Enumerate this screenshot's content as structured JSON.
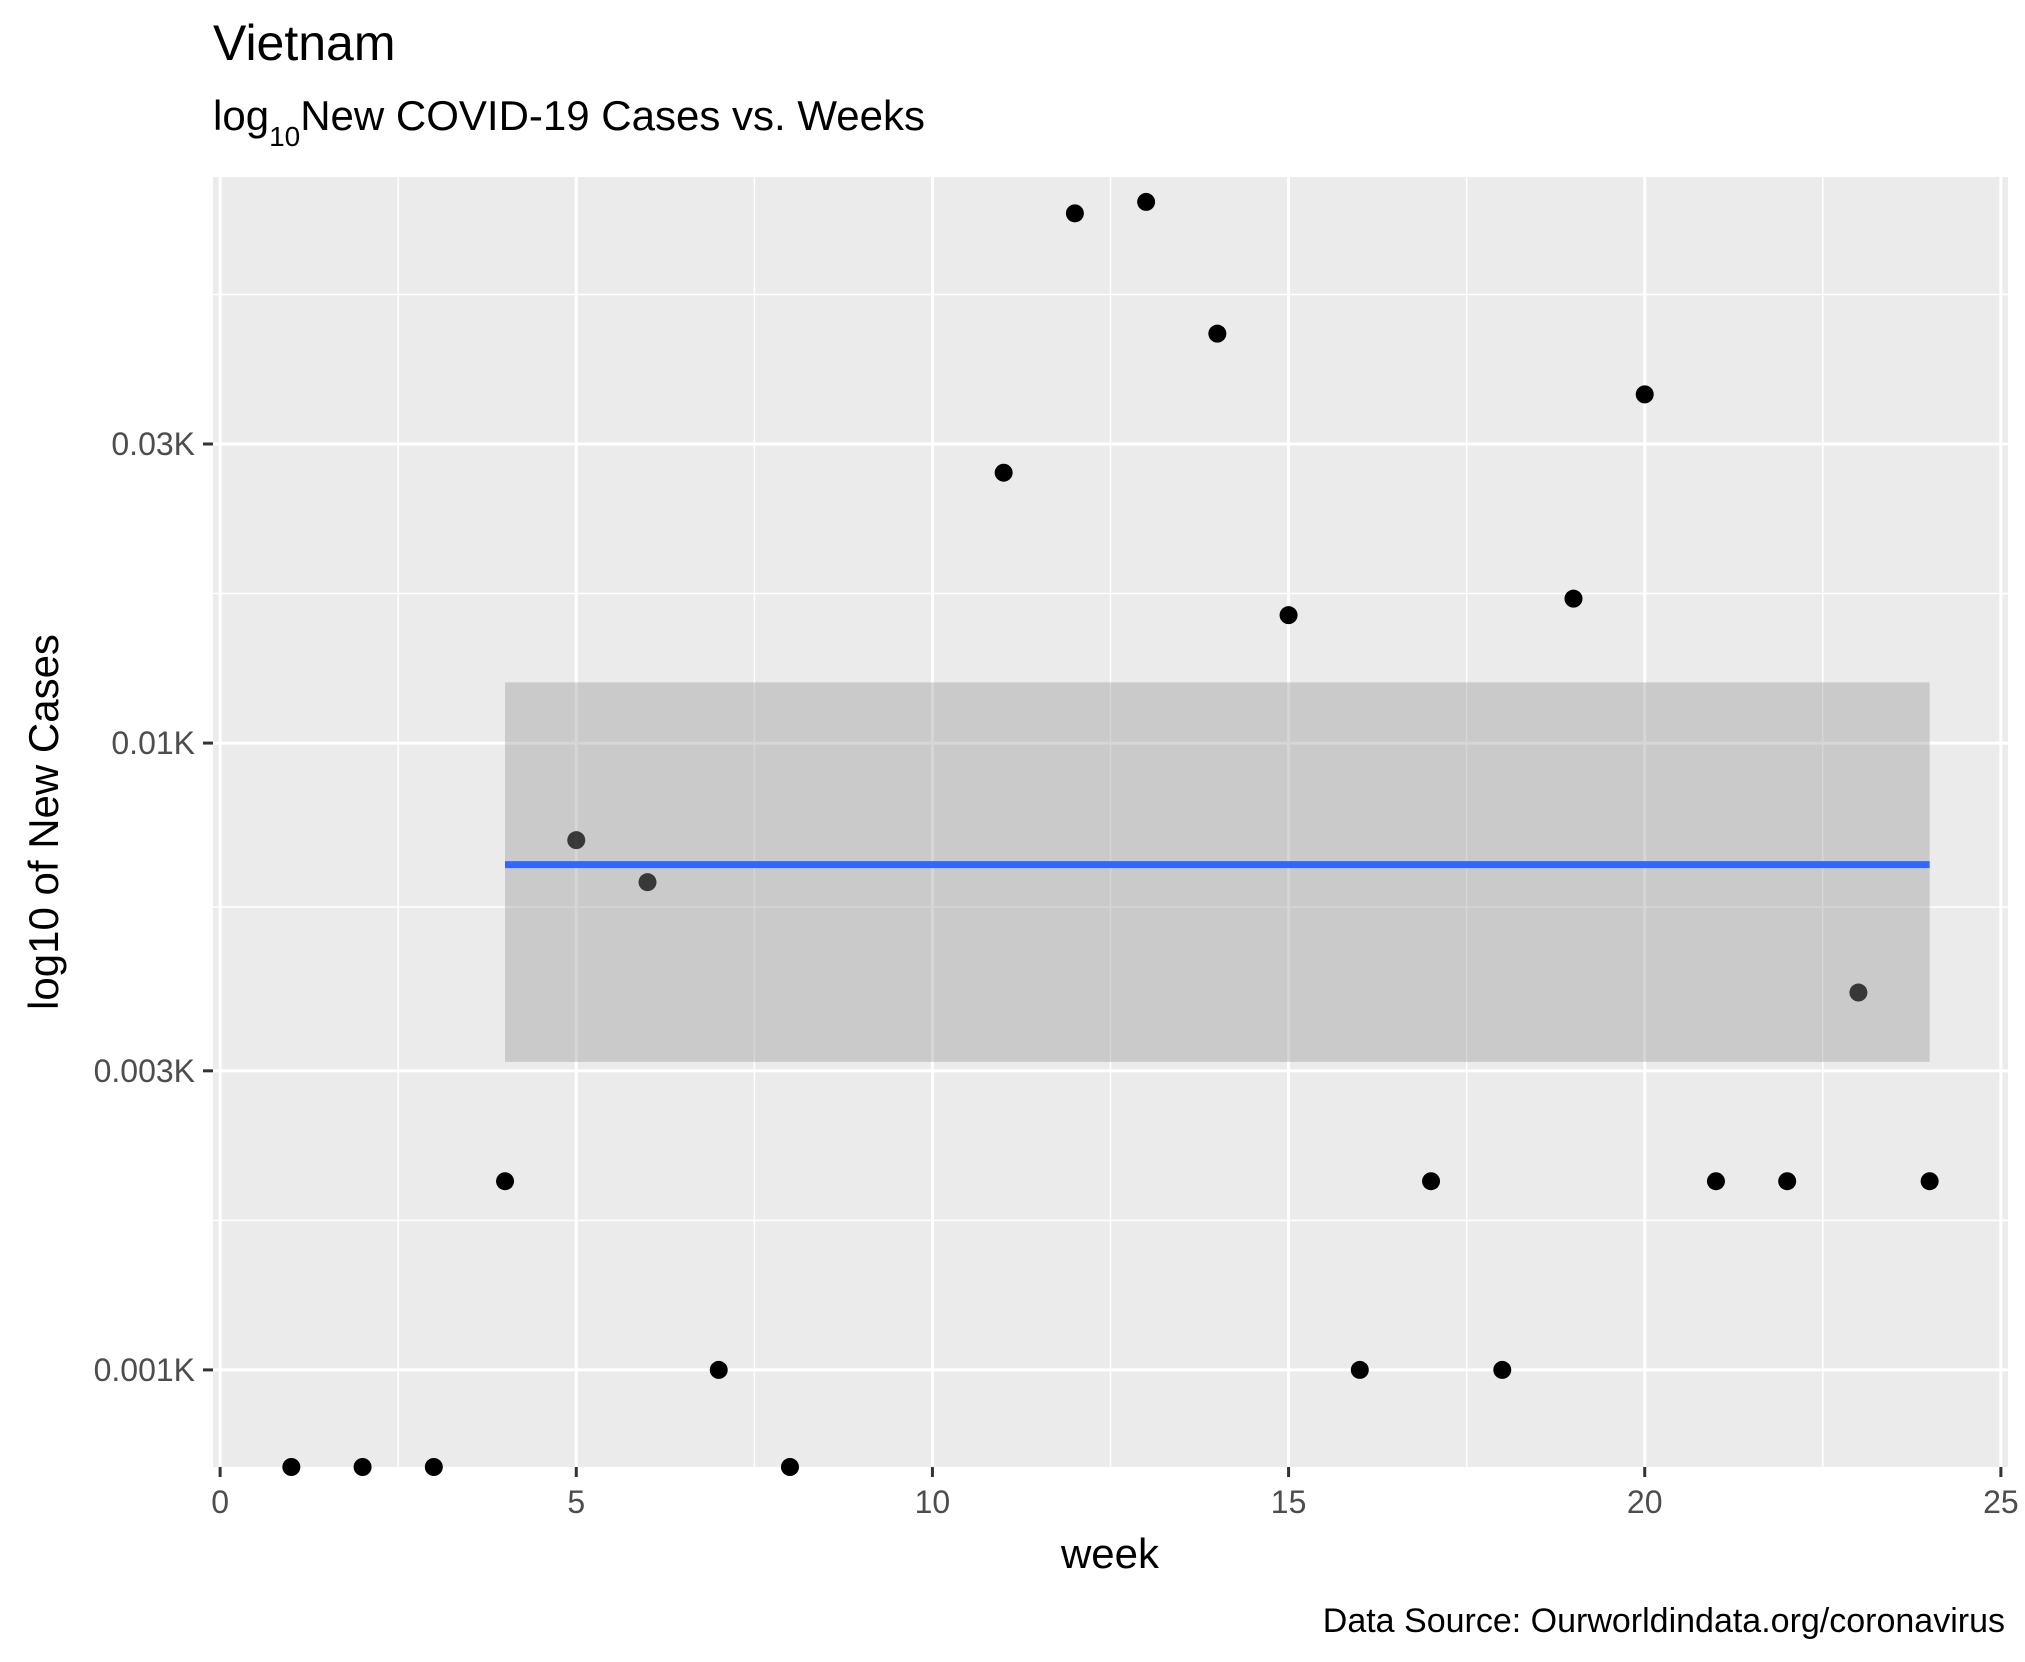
{
  "chart_data": {
    "type": "scatter",
    "title": "Vietnam",
    "subtitle": {
      "pre": "log",
      "sub": "10",
      "post": "New COVID-19 Cases vs. Weeks"
    },
    "xlabel": "week",
    "ylabel": "log10 of New Cases",
    "caption": "Data Source: Ourworldindata.org/coronavirus",
    "x_scale": "linear",
    "y_scale": "log10",
    "xlim": [
      -0.1,
      25.1
    ],
    "ylim": [
      0.7,
      80
    ],
    "x_ticks": [
      {
        "value": 0,
        "label": "0"
      },
      {
        "value": 5,
        "label": "5"
      },
      {
        "value": 10,
        "label": "10"
      },
      {
        "value": 15,
        "label": "15"
      },
      {
        "value": 20,
        "label": "20"
      },
      {
        "value": 25,
        "label": "25"
      }
    ],
    "y_ticks": [
      {
        "value": 1,
        "label": "0.001K"
      },
      {
        "value": 3,
        "label": "0.003K"
      },
      {
        "value": 10,
        "label": "0.01K"
      },
      {
        "value": 30,
        "label": "0.03K"
      }
    ],
    "points": [
      {
        "x": 1,
        "y": 0.7
      },
      {
        "x": 2,
        "y": 0.7
      },
      {
        "x": 3,
        "y": 0.7
      },
      {
        "x": 4,
        "y": 2
      },
      {
        "x": 5,
        "y": 7
      },
      {
        "x": 6,
        "y": 6
      },
      {
        "x": 7,
        "y": 1
      },
      {
        "x": 8,
        "y": 0.7
      },
      {
        "x": 11,
        "y": 27
      },
      {
        "x": 12,
        "y": 70
      },
      {
        "x": 13,
        "y": 73
      },
      {
        "x": 14,
        "y": 45
      },
      {
        "x": 15,
        "y": 16
      },
      {
        "x": 16,
        "y": 1
      },
      {
        "x": 17,
        "y": 2
      },
      {
        "x": 18,
        "y": 1
      },
      {
        "x": 19,
        "y": 17
      },
      {
        "x": 20,
        "y": 36
      },
      {
        "x": 21,
        "y": 2
      },
      {
        "x": 22,
        "y": 2
      },
      {
        "x": 23,
        "y": 4
      },
      {
        "x": 24,
        "y": 2
      }
    ],
    "smooth": {
      "method": "lm",
      "x": [
        4,
        24
      ],
      "fit": [
        6.4,
        6.4
      ],
      "ci_low": [
        3.1,
        3.1
      ],
      "ci_high": [
        12.5,
        12.5
      ],
      "line_color": "#3366ff",
      "band_color": "#999999"
    },
    "panel_background": "#ebebeb",
    "grid": true,
    "point_color": "#000000"
  }
}
